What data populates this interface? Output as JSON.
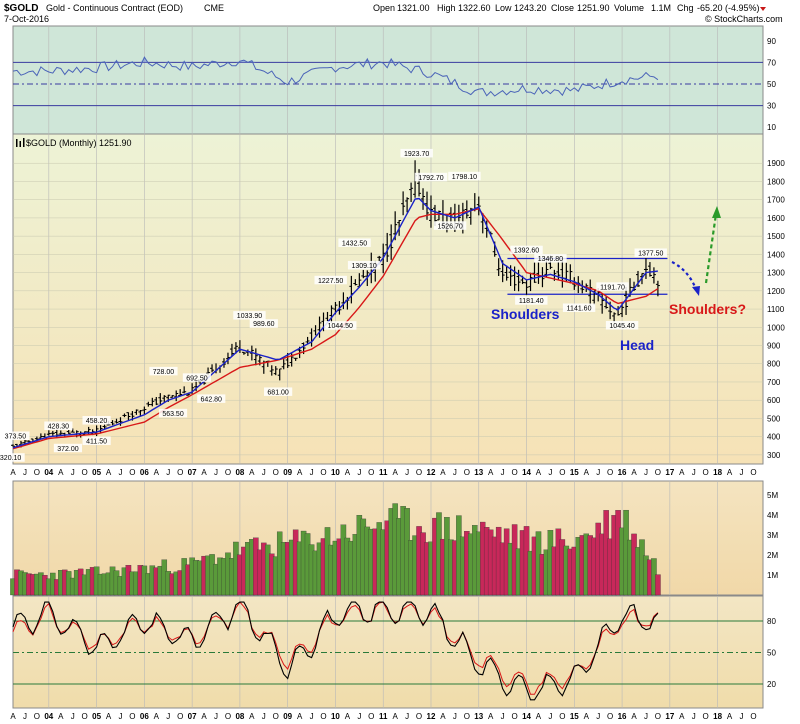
{
  "header": {
    "symbol": "$GOLD",
    "name": "Gold - Continuous Contract (EOD)",
    "exchange": "CME",
    "date": "7-Oct-2016",
    "open_label": "Open",
    "open": "1321.00",
    "high_label": "High",
    "high": "1322.60",
    "low_label": "Low",
    "low": "1243.20",
    "close_label": "Close",
    "close": "1251.90",
    "volume_label": "Volume",
    "volume": "1.1M",
    "chg_label": "Chg",
    "chg": "-65.20 (-4.95%)",
    "watermark": "© StockCharts.com"
  },
  "colors": {
    "price_bg_top": "#eef3d6",
    "price_bg_bottom": "#f6e3b8",
    "rsi_bg": "#cfe6d8",
    "bars": "#000000",
    "ma_short": "#1a22c8",
    "ma_long": "#d81818",
    "vol_up": "#5a9a3a",
    "vol_down": "#c8285a",
    "stoch_k": "#000000",
    "stoch_d": "#d81818",
    "rsi_line": "#4a63b8",
    "arrow_up": "#2a9a2a",
    "arrow_down": "#1a22c8"
  },
  "chart_data": [
    {
      "type": "line",
      "panel": "rsi",
      "ylim": [
        0,
        100
      ],
      "yticks": [
        "90",
        "70",
        "50",
        "30",
        "10"
      ],
      "reference_levels": [
        70,
        50,
        30
      ],
      "x": [
        "2004",
        "2005",
        "2006",
        "2007",
        "2008",
        "2009",
        "2010",
        "2011",
        "2012",
        "2013",
        "2014",
        "2015",
        "2016",
        "2016.8"
      ],
      "values": [
        62,
        65,
        70,
        66,
        72,
        52,
        66,
        70,
        60,
        42,
        46,
        44,
        54,
        58
      ]
    },
    {
      "type": "ohlc",
      "panel": "price",
      "legend": "$GOLD (Monthly) 1251.90",
      "ylim": [
        250,
        2000
      ],
      "yticks": [
        "1900",
        "1800",
        "1700",
        "1600",
        "1500",
        "1400",
        "1300",
        "1200",
        "1100",
        "1000",
        "900",
        "800",
        "700",
        "600",
        "500",
        "400",
        "300"
      ],
      "x": [
        "2003.2",
        "2004.0",
        "2005.0",
        "2006.0",
        "2006.5",
        "2007.0",
        "2008.0",
        "2008.8",
        "2009.5",
        "2010.0",
        "2010.5",
        "2011.0",
        "2011.7",
        "2012.0",
        "2012.5",
        "2013.0",
        "2013.5",
        "2014.0",
        "2014.5",
        "2015.0",
        "2015.5",
        "2015.9",
        "2016.5",
        "2016.8"
      ],
      "close": [
        340,
        410,
        430,
        560,
        620,
        650,
        900,
        750,
        950,
        1100,
        1250,
        1380,
        1800,
        1620,
        1580,
        1680,
        1280,
        1240,
        1320,
        1260,
        1160,
        1060,
        1340,
        1252
      ],
      "ma_short": [
        335,
        400,
        425,
        520,
        600,
        645,
        880,
        820,
        920,
        1080,
        1220,
        1380,
        1720,
        1640,
        1600,
        1660,
        1350,
        1260,
        1290,
        1250,
        1180,
        1090,
        1300,
        1310
      ],
      "ma_long": [
        330,
        390,
        415,
        480,
        560,
        630,
        780,
        820,
        880,
        960,
        1110,
        1280,
        1600,
        1620,
        1620,
        1650,
        1480,
        1300,
        1270,
        1240,
        1200,
        1130,
        1170,
        1220
      ],
      "price_labels": [
        {
          "x": 2003.3,
          "y": 373.5,
          "text": "373.50"
        },
        {
          "x": 2003.2,
          "y": 320.1,
          "text": "320.10"
        },
        {
          "x": 2004.2,
          "y": 428.3,
          "text": "428.30"
        },
        {
          "x": 2004.4,
          "y": 372.0,
          "text": "372.00"
        },
        {
          "x": 2005.0,
          "y": 458.2,
          "text": "458.20"
        },
        {
          "x": 2005.0,
          "y": 411.5,
          "text": "411.50"
        },
        {
          "x": 2006.4,
          "y": 728.0,
          "text": "728.00"
        },
        {
          "x": 2006.6,
          "y": 563.5,
          "text": "563.50"
        },
        {
          "x": 2007.1,
          "y": 692.5,
          "text": "692.50"
        },
        {
          "x": 2007.4,
          "y": 642.8,
          "text": "642.80"
        },
        {
          "x": 2008.2,
          "y": 1033.9,
          "text": "1033.90"
        },
        {
          "x": 2008.5,
          "y": 989.6,
          "text": "989.60"
        },
        {
          "x": 2008.8,
          "y": 681.0,
          "text": "681.00"
        },
        {
          "x": 2009.9,
          "y": 1227.5,
          "text": "1227.50"
        },
        {
          "x": 2010.1,
          "y": 1044.5,
          "text": "1044.50"
        },
        {
          "x": 2010.6,
          "y": 1309.1,
          "text": "1309.10"
        },
        {
          "x": 2010.4,
          "y": 1432.5,
          "text": "1432.50"
        },
        {
          "x": 2011.7,
          "y": 1923.7,
          "text": "1923.70"
        },
        {
          "x": 2012.0,
          "y": 1792.7,
          "text": "1792.70"
        },
        {
          "x": 2012.7,
          "y": 1798.1,
          "text": "1798.10"
        },
        {
          "x": 2012.4,
          "y": 1526.7,
          "text": "1526.70"
        },
        {
          "x": 2014.0,
          "y": 1392.6,
          "text": "1392.60"
        },
        {
          "x": 2014.5,
          "y": 1346.8,
          "text": "1346.80"
        },
        {
          "x": 2014.1,
          "y": 1181.4,
          "text": "1181.40"
        },
        {
          "x": 2015.1,
          "y": 1141.6,
          "text": "1141.60"
        },
        {
          "x": 2015.8,
          "y": 1191.7,
          "text": "1191.70"
        },
        {
          "x": 2016.0,
          "y": 1045.4,
          "text": "1045.40"
        },
        {
          "x": 2016.6,
          "y": 1377.5,
          "text": "1377.50"
        }
      ],
      "resistance_level": 1377.5,
      "support_level": 1181.4,
      "annotations": [
        "Shoulders",
        "Head",
        "Shoulders?"
      ]
    },
    {
      "type": "bar",
      "panel": "volume",
      "yticks": [
        "5M",
        "4M",
        "3M",
        "2M",
        "1M"
      ],
      "ylim": [
        0,
        5.5
      ],
      "x": [
        "2003",
        "2004",
        "2005",
        "2006",
        "2007",
        "2008",
        "2009",
        "2010",
        "2011",
        "2012",
        "2013",
        "2014",
        "2015",
        "2016",
        "2016.8"
      ],
      "values": [
        1.0,
        1.0,
        1.1,
        1.3,
        1.5,
        2.2,
        2.5,
        2.9,
        3.6,
        3.3,
        3.2,
        2.7,
        2.6,
        3.9,
        1.1
      ]
    },
    {
      "type": "line",
      "panel": "stochastic",
      "ylim": [
        0,
        100
      ],
      "yticks": [
        "80",
        "50",
        "20"
      ],
      "reference_levels": [
        80,
        50,
        20
      ],
      "x": [
        "2003",
        "2004",
        "2005",
        "2006",
        "2007",
        "2008",
        "2009",
        "2010",
        "2011",
        "2012",
        "2013",
        "2014",
        "2015",
        "2016",
        "2016.8"
      ],
      "series": [
        {
          "values": [
            70,
            88,
            55,
            80,
            60,
            95,
            35,
            85,
            92,
            88,
            40,
            12,
            25,
            85,
            78
          ]
        },
        {
          "values": [
            65,
            85,
            58,
            78,
            62,
            92,
            42,
            82,
            90,
            86,
            45,
            18,
            28,
            80,
            82
          ]
        }
      ]
    }
  ],
  "x_axis": {
    "month_letters": [
      "A",
      "J",
      "O"
    ],
    "year_labels": [
      "04",
      "05",
      "06",
      "07",
      "08",
      "09",
      "10",
      "11",
      "12",
      "13",
      "14",
      "15",
      "16",
      "17",
      "18"
    ]
  }
}
